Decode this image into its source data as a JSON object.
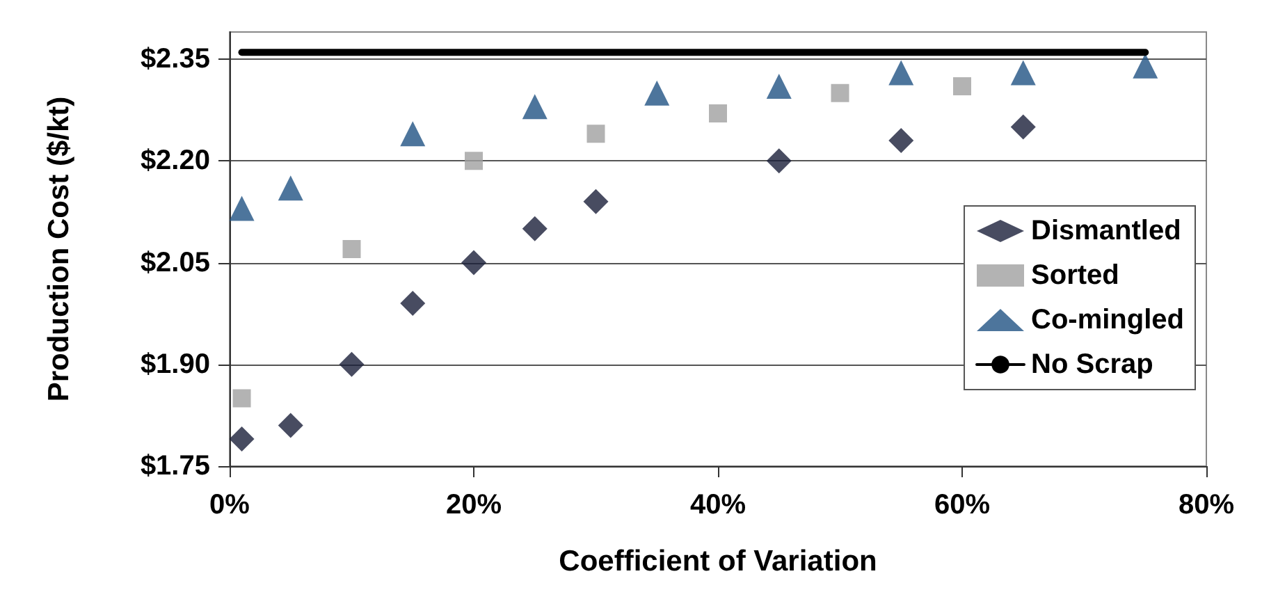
{
  "chart_data": {
    "type": "scatter",
    "xlabel": "Coefficient of Variation",
    "ylabel": "Production Cost ($/kt)",
    "xlim": [
      0,
      80
    ],
    "xticks": [
      {
        "value": 0,
        "label": "0%"
      },
      {
        "value": 20,
        "label": "20%"
      },
      {
        "value": 40,
        "label": "40%"
      },
      {
        "value": 60,
        "label": "60%"
      },
      {
        "value": 80,
        "label": "80%"
      }
    ],
    "ylim": [
      1.75,
      2.39
    ],
    "yticks": [
      {
        "value": 1.75,
        "label": "$1.75"
      },
      {
        "value": 1.9,
        "label": "$1.90"
      },
      {
        "value": 2.05,
        "label": "$2.05"
      },
      {
        "value": 2.2,
        "label": "$2.20"
      },
      {
        "value": 2.35,
        "label": "$2.35"
      }
    ],
    "grid": "y",
    "legend": "right",
    "series": [
      {
        "name": "Dismantled",
        "color": "#1a1f3a",
        "marker": "diamond",
        "x": [
          1,
          5,
          10,
          15,
          20,
          25,
          30,
          45,
          55,
          65
        ],
        "values": [
          1.79,
          1.81,
          1.9,
          1.99,
          2.05,
          2.1,
          2.14,
          2.2,
          2.23,
          2.25
        ]
      },
      {
        "name": "Sorted",
        "color": "#a0a0a0",
        "marker": "square",
        "x": [
          1,
          10,
          20,
          30,
          40,
          50,
          60
        ],
        "values": [
          1.85,
          2.07,
          2.2,
          2.24,
          2.27,
          2.3,
          2.31
        ]
      },
      {
        "name": "Co-mingled",
        "color": "#215283",
        "marker": "triangle",
        "x": [
          1,
          5,
          15,
          25,
          35,
          45,
          55,
          65,
          75
        ],
        "values": [
          2.13,
          2.16,
          2.24,
          2.28,
          2.3,
          2.31,
          2.33,
          2.33,
          2.34
        ]
      },
      {
        "name": "No Scrap",
        "type": "line",
        "color": "#000000",
        "marker": "none",
        "line_style": "solid",
        "x": [
          1,
          75
        ],
        "values": [
          2.36,
          2.36
        ]
      }
    ]
  }
}
